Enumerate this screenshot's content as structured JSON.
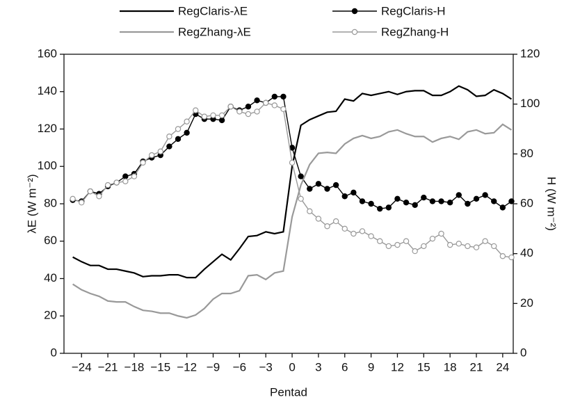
{
  "chart_data": {
    "type": "line",
    "x": [
      -25,
      -24,
      -23,
      -22,
      -21,
      -20,
      -19,
      -18,
      -17,
      -16,
      -15,
      -14,
      -13,
      -12,
      -11,
      -10,
      -9,
      -8,
      -7,
      -6,
      -5,
      -4,
      -3,
      -2,
      -1,
      0,
      1,
      2,
      3,
      4,
      5,
      6,
      7,
      8,
      9,
      10,
      11,
      12,
      13,
      14,
      15,
      16,
      17,
      18,
      19,
      20,
      21,
      22,
      23,
      24,
      25
    ],
    "xlabel": "Pentad",
    "ylabel": "λE (W m⁻²)",
    "y2label": "H (W m⁻²)",
    "xlim": [
      -26,
      25.2
    ],
    "xticks": [
      {
        "value": -24,
        "label": "−24"
      },
      {
        "value": -21,
        "label": "−21"
      },
      {
        "value": -18,
        "label": "−18"
      },
      {
        "value": -15,
        "label": "−15"
      },
      {
        "value": -12,
        "label": "−12"
      },
      {
        "value": -9,
        "label": "−9"
      },
      {
        "value": -6,
        "label": "−6"
      },
      {
        "value": -3,
        "label": "−3"
      },
      0,
      3,
      6,
      9,
      12,
      15,
      18,
      21,
      24
    ],
    "ylim": [
      0,
      160
    ],
    "yticks": [
      0,
      20,
      40,
      60,
      80,
      100,
      120,
      140,
      160
    ],
    "y2lim": [
      0,
      120
    ],
    "y2ticks": [
      0,
      20,
      40,
      60,
      80,
      100,
      120
    ],
    "series": [
      {
        "name": "RegClaris-λE",
        "color": "#000000",
        "values": [
          51.5,
          49,
          47,
          47,
          45,
          45,
          44,
          43,
          41,
          41.5,
          41.5,
          42,
          42,
          40.5,
          40.5,
          45,
          49,
          53,
          50,
          56,
          62.5,
          63,
          65,
          64,
          65,
          100,
          122,
          125,
          127,
          129,
          129.5,
          136,
          135,
          139,
          138,
          139,
          140,
          138.5,
          140,
          140.5,
          140.5,
          138,
          138,
          140,
          143,
          141,
          137.5,
          138,
          141,
          139,
          136
        ]
      },
      {
        "name": "RegClaris-H",
        "color": "#000000",
        "axis": "y2",
        "marker": "filled-circle",
        "values": [
          61.5,
          61,
          65,
          64,
          67,
          68.5,
          71,
          72,
          77,
          78.5,
          79.5,
          83,
          86,
          88.5,
          96,
          94,
          94,
          93.5,
          99,
          97.5,
          99,
          101.5,
          100.5,
          103,
          103,
          82.5,
          71,
          66,
          68,
          66,
          67.5,
          63,
          64.5,
          61,
          60,
          58,
          58.5,
          62,
          60.5,
          59.5,
          62.5,
          61,
          61,
          60.5,
          63.5,
          60,
          62,
          63.5,
          61,
          58.5,
          61
        ]
      },
      {
        "name": "RegZhang-λE",
        "color": "#999999",
        "values": [
          37,
          34,
          32,
          30.5,
          28,
          27.5,
          27.5,
          25,
          23,
          22.5,
          21.5,
          21.5,
          20,
          19,
          20.5,
          24,
          29,
          32,
          32,
          33.5,
          41.5,
          42,
          39.5,
          43,
          44,
          73,
          90,
          101,
          107,
          107.5,
          107,
          112,
          115,
          116.5,
          115,
          116,
          118.5,
          119.5,
          117.5,
          116,
          116,
          113,
          115,
          116,
          114.5,
          118.5,
          119.5,
          117.5,
          118,
          122.5,
          119.5
        ]
      },
      {
        "name": "RegZhang-H",
        "color": "#999999",
        "axis": "y2",
        "marker": "open-circle",
        "values": [
          62,
          60.5,
          65,
          63,
          67.5,
          68.5,
          69,
          71,
          76.5,
          79.5,
          81,
          87,
          90,
          93,
          97.5,
          95,
          95.5,
          95.5,
          99,
          97,
          96,
          97,
          100.5,
          99.5,
          98,
          76.5,
          62,
          57,
          54,
          51,
          53,
          50,
          48,
          49,
          47,
          45,
          43,
          43.5,
          45,
          41,
          43,
          46,
          48,
          43.5,
          44,
          43,
          42.5,
          45,
          43,
          39,
          38.5
        ]
      }
    ]
  }
}
